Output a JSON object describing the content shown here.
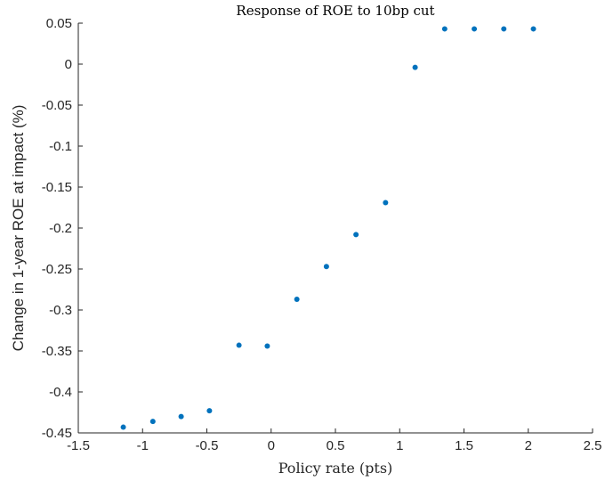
{
  "chart_data": {
    "type": "scatter",
    "title": "Response of ROE to 10bp cut",
    "xlabel": "Policy rate (pts)",
    "ylabel": "Change in 1-year ROE at impact (%)",
    "xlim": [
      -1.5,
      2.5
    ],
    "ylim": [
      -0.45,
      0.05
    ],
    "xticks": [
      "-1.5",
      "-1",
      "-0.5",
      "0",
      "0.5",
      "1",
      "1.5",
      "2",
      "2.5"
    ],
    "yticks": [
      "0.05",
      "0",
      "-0.05",
      "-0.1",
      "-0.15",
      "-0.2",
      "-0.25",
      "-0.3",
      "-0.35",
      "-0.4",
      "-0.45"
    ],
    "grid": false,
    "marker_color": "#0072BD",
    "points": [
      {
        "x": -1.15,
        "y": -0.443
      },
      {
        "x": -0.92,
        "y": -0.436
      },
      {
        "x": -0.7,
        "y": -0.43
      },
      {
        "x": -0.48,
        "y": -0.423
      },
      {
        "x": -0.25,
        "y": -0.343
      },
      {
        "x": -0.03,
        "y": -0.344
      },
      {
        "x": 0.2,
        "y": -0.287
      },
      {
        "x": 0.43,
        "y": -0.247
      },
      {
        "x": 0.66,
        "y": -0.208
      },
      {
        "x": 0.89,
        "y": -0.169
      },
      {
        "x": 1.12,
        "y": -0.004
      },
      {
        "x": 1.35,
        "y": 0.043
      },
      {
        "x": 1.58,
        "y": 0.043
      },
      {
        "x": 1.81,
        "y": 0.043
      },
      {
        "x": 2.04,
        "y": 0.043
      }
    ]
  }
}
